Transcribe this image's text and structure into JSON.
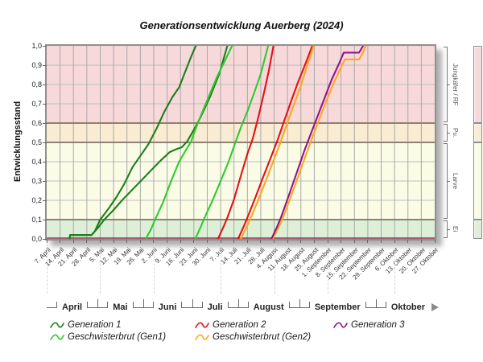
{
  "chart_data": {
    "type": "line",
    "title": "Generationsentwicklung Auerberg (2024)",
    "ylabel": "Entwicklungsstand",
    "ylim": [
      0,
      1
    ],
    "grid": true,
    "y_tick_labels": [
      "1,0",
      "0,9",
      "0,8",
      "0,7",
      "0,6",
      "0,5",
      "0,4",
      "0,3",
      "0,2",
      "0,1",
      "0,0"
    ],
    "x_labels": [
      "7. April",
      "14. April",
      "21. April",
      "28. April",
      "5. Mai",
      "12. Mai",
      "19. Mai",
      "26. Mai",
      "2. Juni",
      "9. Juni",
      "16. Juni",
      "23. Juni",
      "30. Juni",
      "7. Juli",
      "14. Juli",
      "21. Juli",
      "28. Juli",
      "4. August",
      "11. August",
      "18. August",
      "25. August",
      "1. September",
      "8. September",
      "15. September",
      "22. September",
      "29. September",
      "6. Oktober",
      "13. Oktober",
      "20. Oktober",
      "27. Oktober"
    ],
    "month_start_indices": [
      0,
      4,
      8,
      13,
      17,
      21,
      26
    ],
    "months": [
      "April",
      "Mai",
      "Juni",
      "Juli",
      "August",
      "September",
      "Oktober"
    ],
    "stages": [
      {
        "label": "Jungkäfer / RF",
        "from": 0.6,
        "to": 1.0,
        "color": "#f8d9da"
      },
      {
        "label": "Pu.",
        "from": 0.5,
        "to": 0.6,
        "color": "#f9ecd2"
      },
      {
        "label": "Larve",
        "from": 0.1,
        "to": 0.5,
        "color": "#fbfce6"
      },
      {
        "label": "Ei",
        "from": 0.0,
        "to": 0.1,
        "color": "#ddefd7"
      }
    ],
    "stage_boundaries": [
      0.1,
      0.5,
      0.6
    ],
    "series": [
      {
        "name": "Generation 1",
        "variant": 1,
        "color": "#1c7d1c",
        "points": [
          [
            1.7,
            0
          ],
          [
            1.75,
            0.02
          ],
          [
            3.35,
            0.02
          ],
          [
            3.6,
            0.04
          ],
          [
            4.0,
            0.1
          ],
          [
            4.6,
            0.155
          ],
          [
            5.2,
            0.215
          ],
          [
            5.8,
            0.285
          ],
          [
            6.4,
            0.37
          ],
          [
            7.0,
            0.43
          ],
          [
            7.6,
            0.49
          ],
          [
            8.2,
            0.57
          ],
          [
            8.8,
            0.66
          ],
          [
            9.4,
            0.735
          ],
          [
            9.9,
            0.785
          ],
          [
            10.4,
            0.875
          ],
          [
            10.8,
            0.945
          ],
          [
            11.15,
            1.0
          ]
        ]
      },
      {
        "name": "Generation 1",
        "variant": 2,
        "color": "#1c7d1c",
        "points": [
          [
            1.7,
            0
          ],
          [
            1.75,
            0.02
          ],
          [
            3.35,
            0.02
          ],
          [
            3.8,
            0.055
          ],
          [
            4.3,
            0.1
          ],
          [
            5.0,
            0.15
          ],
          [
            5.7,
            0.205
          ],
          [
            6.4,
            0.255
          ],
          [
            7.1,
            0.305
          ],
          [
            7.8,
            0.355
          ],
          [
            8.5,
            0.405
          ],
          [
            9.2,
            0.45
          ],
          [
            9.7,
            0.465
          ],
          [
            10.1,
            0.475
          ],
          [
            10.5,
            0.505
          ],
          [
            11.0,
            0.565
          ],
          [
            11.5,
            0.63
          ],
          [
            12.2,
            0.735
          ],
          [
            12.9,
            0.855
          ],
          [
            13.5,
            1.0
          ]
        ]
      },
      {
        "name": "Geschwisterbrut (Gen1)",
        "variant": 1,
        "color": "#2fca2f",
        "points": [
          [
            7.4,
            0
          ],
          [
            7.8,
            0.05
          ],
          [
            8.1,
            0.1
          ],
          [
            8.7,
            0.19
          ],
          [
            9.3,
            0.3
          ],
          [
            9.9,
            0.4
          ],
          [
            10.4,
            0.46
          ],
          [
            10.8,
            0.505
          ],
          [
            11.1,
            0.565
          ],
          [
            11.5,
            0.635
          ],
          [
            12.1,
            0.735
          ],
          [
            12.7,
            0.835
          ],
          [
            13.3,
            0.92
          ],
          [
            13.85,
            1.0
          ]
        ]
      },
      {
        "name": "Geschwisterbrut (Gen1)",
        "variant": 2,
        "color": "#2fca2f",
        "points": [
          [
            11.1,
            0
          ],
          [
            11.5,
            0.06
          ],
          [
            11.8,
            0.11
          ],
          [
            12.4,
            0.2
          ],
          [
            13.0,
            0.3
          ],
          [
            13.6,
            0.4
          ],
          [
            14.1,
            0.5
          ],
          [
            14.5,
            0.575
          ],
          [
            15.0,
            0.66
          ],
          [
            15.5,
            0.755
          ],
          [
            16.0,
            0.855
          ],
          [
            16.55,
            1.0
          ]
        ]
      },
      {
        "name": "Generation 2",
        "variant": 1,
        "color": "#e31118",
        "points": [
          [
            12.8,
            0
          ],
          [
            13.2,
            0.06
          ],
          [
            13.5,
            0.11
          ],
          [
            14.0,
            0.205
          ],
          [
            14.5,
            0.325
          ],
          [
            15.0,
            0.44
          ],
          [
            15.4,
            0.52
          ],
          [
            15.8,
            0.625
          ],
          [
            16.2,
            0.745
          ],
          [
            16.6,
            0.87
          ],
          [
            16.95,
            1.0
          ]
        ]
      },
      {
        "name": "Generation 2",
        "variant": 2,
        "color": "#e31118",
        "points": [
          [
            14.3,
            0
          ],
          [
            14.7,
            0.06
          ],
          [
            15.0,
            0.11
          ],
          [
            15.6,
            0.215
          ],
          [
            16.2,
            0.325
          ],
          [
            16.8,
            0.43
          ],
          [
            17.3,
            0.52
          ],
          [
            17.8,
            0.62
          ],
          [
            18.3,
            0.72
          ],
          [
            18.8,
            0.815
          ],
          [
            19.3,
            0.9
          ],
          [
            19.85,
            1.0
          ]
        ]
      },
      {
        "name": "Geschwisterbrut (Gen2)",
        "variant": 1,
        "color": "#ffa51c",
        "points": [
          [
            14.5,
            0
          ],
          [
            14.9,
            0.055
          ],
          [
            15.2,
            0.1
          ],
          [
            15.8,
            0.2
          ],
          [
            16.4,
            0.305
          ],
          [
            17.0,
            0.415
          ],
          [
            17.5,
            0.505
          ],
          [
            18.0,
            0.605
          ],
          [
            18.5,
            0.7
          ],
          [
            19.0,
            0.795
          ],
          [
            19.5,
            0.905
          ],
          [
            19.95,
            1.0
          ]
        ]
      },
      {
        "name": "Geschwisterbrut (Gen2)",
        "variant": 2,
        "color": "#ffa51c",
        "points": [
          [
            16.9,
            0
          ],
          [
            17.3,
            0.055
          ],
          [
            17.6,
            0.1
          ],
          [
            18.2,
            0.21
          ],
          [
            18.8,
            0.325
          ],
          [
            19.4,
            0.44
          ],
          [
            19.9,
            0.535
          ],
          [
            20.4,
            0.625
          ],
          [
            20.9,
            0.715
          ],
          [
            21.4,
            0.8
          ],
          [
            21.9,
            0.875
          ],
          [
            22.3,
            0.93
          ],
          [
            23.35,
            0.93
          ],
          [
            23.6,
            0.96
          ],
          [
            23.85,
            1.0
          ]
        ]
      },
      {
        "name": "Generation 3",
        "variant": 1,
        "color": "#8e158e",
        "points": [
          [
            16.8,
            0
          ],
          [
            17.2,
            0.06
          ],
          [
            17.5,
            0.11
          ],
          [
            18.1,
            0.225
          ],
          [
            18.7,
            0.345
          ],
          [
            19.3,
            0.465
          ],
          [
            19.8,
            0.555
          ],
          [
            20.3,
            0.645
          ],
          [
            20.8,
            0.735
          ],
          [
            21.3,
            0.825
          ],
          [
            21.8,
            0.9
          ],
          [
            22.2,
            0.965
          ],
          [
            23.35,
            0.965
          ],
          [
            23.65,
            1.0
          ]
        ]
      }
    ],
    "legend_position": "bottom"
  },
  "legend": [
    {
      "label": "Generation 1",
      "color": "#1c7d1c"
    },
    {
      "label": "Generation 2",
      "color": "#e31118"
    },
    {
      "label": "Generation 3",
      "color": "#8e158e"
    },
    {
      "label": "Geschwisterbrut (Gen1)",
      "color": "#2fca2f"
    },
    {
      "label": "Geschwisterbrut (Gen2)",
      "color": "#ffa51c"
    }
  ],
  "icons": {
    "legend_swatch": "squiggle-line-icon",
    "month_nav": "next-arrow-icon"
  },
  "colors": {
    "frame": "#8f8f8f",
    "grid_vertical": "#a8a8a8",
    "grid_horizontal": "#bdbdbd",
    "stage_boundary": "#8f8072",
    "baseline": "#8c3050",
    "shadow": "#6e6e6e"
  }
}
